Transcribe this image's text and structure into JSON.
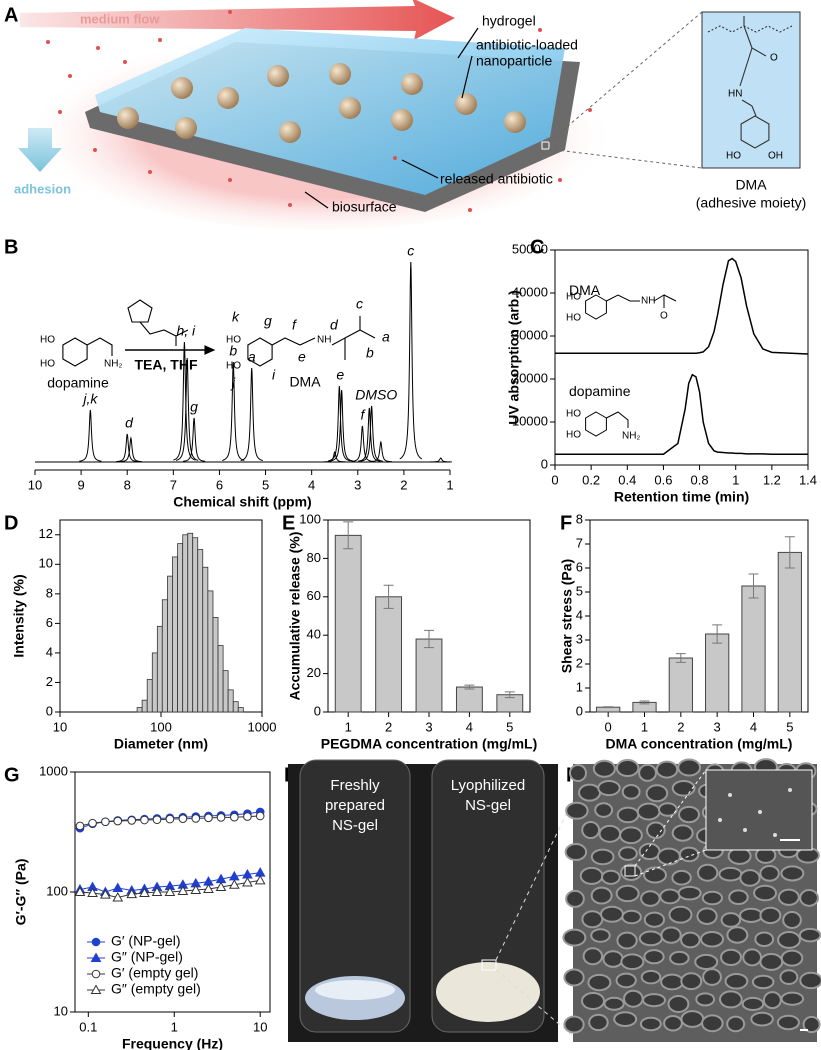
{
  "panel_labels": [
    "A",
    "B",
    "C",
    "D",
    "E",
    "F",
    "G",
    "H",
    "I"
  ],
  "schematic": {
    "flow_label": "medium flow",
    "hydrogel": "hydrogel",
    "nanoparticle": [
      "antibiotic-loaded",
      "nanoparticle"
    ],
    "adhesion": "adhesion",
    "released": "released antibiotic",
    "biosurface": "biosurface",
    "moiety_atoms": [
      "O",
      "HN",
      "HO",
      "OH"
    ],
    "moiety_name": "DMA",
    "moiety_note": "(adhesive moiety)"
  },
  "synthesis": {
    "reactant": "dopamine",
    "reactant_atoms": [
      "HO",
      "HO",
      "NH₂"
    ],
    "conditions": "TEA, THF",
    "product": "DMA",
    "product_atoms": [
      "HO",
      "HO",
      "NH"
    ],
    "site_labels": [
      "k",
      "g",
      "f",
      "d",
      "c",
      "a",
      "b",
      "e",
      "j",
      "i"
    ]
  },
  "chart_data": [
    {
      "type": "spectrum",
      "xlabel": "Chemical shift (ppm)",
      "xlim": [
        10,
        1
      ],
      "xticks": [
        10,
        9,
        8,
        7,
        6,
        5,
        4,
        3,
        2,
        1
      ],
      "x": [
        8.8,
        8.0,
        7.92,
        6.76,
        6.7,
        6.55,
        5.7,
        5.3,
        3.5,
        3.4,
        3.35,
        2.9,
        2.75,
        2.7,
        2.5,
        1.85,
        1.2
      ],
      "values": [
        26,
        14,
        12,
        60,
        52,
        22,
        50,
        47,
        5,
        38,
        36,
        18,
        27,
        28,
        10,
        100,
        2
      ],
      "annotations": [
        {
          "text": "j,k",
          "x": 8.8
        },
        {
          "text": "d",
          "x": 7.96
        },
        {
          "text": "h, i",
          "x": 6.73
        },
        {
          "text": "g",
          "x": 6.55
        },
        {
          "text": "b",
          "x": 5.7
        },
        {
          "text": "a",
          "x": 5.3
        },
        {
          "text": "e",
          "x": 3.38
        },
        {
          "text": "f",
          "x": 2.9
        },
        {
          "text": "DMSO",
          "x": 2.6
        },
        {
          "text": "c",
          "x": 1.85
        }
      ]
    },
    {
      "type": "line",
      "xlabel": "Retention time (min)",
      "ylabel": "UV absorption (arb.)",
      "xlim": [
        0,
        1.4
      ],
      "xticks": [
        0,
        0.2,
        0.4,
        0.6,
        0.8,
        1,
        1.2,
        1.4
      ],
      "ylim": [
        0,
        50000
      ],
      "yticks": [
        0,
        10000,
        20000,
        30000,
        40000,
        50000
      ],
      "x": [
        0,
        0.6,
        0.68,
        0.72,
        0.74,
        0.76,
        0.78,
        0.8,
        0.82,
        0.85,
        0.88,
        0.9,
        0.93,
        0.96,
        0.98,
        1.0,
        1.03,
        1.06,
        1.1,
        1.15,
        1.2,
        1.4
      ],
      "series": [
        {
          "name": "DMA",
          "color": "#000000",
          "values": [
            26000,
            26000,
            26000,
            26000,
            26000,
            26000,
            26000,
            26100,
            26300,
            27500,
            31000,
            35000,
            42000,
            47500,
            48000,
            47300,
            43500,
            37000,
            30500,
            27000,
            26200,
            25800
          ]
        },
        {
          "name": "dopamine",
          "color": "#000000",
          "values": [
            2500,
            2500,
            5000,
            13000,
            19000,
            21000,
            20500,
            17000,
            10000,
            5000,
            3300,
            3000,
            2900,
            2800,
            2800,
            2700,
            2700,
            2600,
            2600,
            2600,
            2500,
            2500
          ]
        }
      ],
      "structure_atoms": [
        [
          "HO",
          "HO",
          "NH",
          "O"
        ],
        [
          "HO",
          "HO",
          "NH₂"
        ]
      ]
    },
    {
      "type": "histogram",
      "xlabel": "Diameter (nm)",
      "ylabel": "Intensity (%)",
      "xlog": true,
      "xlim": [
        10,
        1000
      ],
      "xticks": [
        10,
        100,
        1000
      ],
      "ylim": [
        0,
        13
      ],
      "yticks": [
        0,
        2,
        4,
        6,
        8,
        10,
        12
      ],
      "color": "#c8c8c8",
      "bins": [
        58,
        65,
        73,
        82,
        92,
        103,
        116,
        130,
        146,
        164,
        184,
        206,
        231,
        259,
        291,
        327,
        367,
        412,
        462,
        519,
        582,
        653
      ],
      "counts": [
        0.3,
        0.8,
        2.2,
        4,
        5.8,
        7.6,
        9.2,
        10.5,
        11.4,
        12,
        12.1,
        11.8,
        11,
        9.8,
        8.2,
        6.4,
        4.5,
        2.8,
        1.5,
        0.7,
        0.3
      ]
    },
    {
      "type": "bar",
      "xlabel": "PEGDMA concentration (mg/mL)",
      "ylabel": "Accumulative release (%)",
      "categories": [
        "1",
        "2",
        "3",
        "4",
        "5"
      ],
      "values": [
        92,
        60,
        38,
        13,
        9
      ],
      "errors": [
        7,
        6,
        4.5,
        1,
        1.5
      ],
      "color": "#c8c8c8",
      "ylim": [
        0,
        100
      ],
      "yticks": [
        0,
        20,
        40,
        60,
        80,
        100
      ]
    },
    {
      "type": "bar",
      "xlabel": "DMA concentration (mg/mL)",
      "ylabel": "Shear stress (Pa)",
      "categories": [
        "0",
        "1",
        "2",
        "3",
        "4",
        "5"
      ],
      "values": [
        0.2,
        0.4,
        2.25,
        3.25,
        5.25,
        6.65
      ],
      "errors": [
        0.02,
        0.06,
        0.18,
        0.38,
        0.5,
        0.65
      ],
      "color": "#c8c8c8",
      "ylim": [
        0,
        8
      ],
      "yticks": [
        0,
        1,
        2,
        3,
        4,
        5,
        6,
        7,
        8
      ]
    },
    {
      "type": "line",
      "xlabel": "Frequency (Hz)",
      "ylabel": "G′-G″ (Pa)",
      "xlog": true,
      "ylog": true,
      "xlim": [
        0.07,
        13
      ],
      "xticks": [
        0.1,
        1,
        10
      ],
      "ylim": [
        10,
        1000
      ],
      "yticks": [
        10,
        100,
        1000
      ],
      "legend": "lower left",
      "x": [
        0.08,
        0.112,
        0.158,
        0.22,
        0.32,
        0.45,
        0.63,
        0.89,
        1.26,
        1.78,
        2.5,
        3.5,
        5,
        7.1,
        10
      ],
      "series": [
        {
          "name": "G′ (NP-gel)",
          "color": "#1f3fd0",
          "marker": "circle",
          "filled": true,
          "values": [
            340,
            370,
            385,
            395,
            400,
            405,
            410,
            415,
            420,
            425,
            430,
            435,
            440,
            450,
            465
          ]
        },
        {
          "name": "G″ (NP-gel)",
          "color": "#1f3fd0",
          "marker": "triangle",
          "filled": true,
          "values": [
            105,
            110,
            100,
            108,
            103,
            106,
            110,
            112,
            115,
            118,
            122,
            128,
            135,
            140,
            145
          ]
        },
        {
          "name": "G′ (empty gel)",
          "color": "#333333",
          "marker": "circle",
          "filled": false,
          "values": [
            355,
            375,
            385,
            390,
            395,
            398,
            400,
            405,
            408,
            410,
            415,
            418,
            420,
            425,
            430
          ]
        },
        {
          "name": "G″ (empty gel)",
          "color": "#333333",
          "marker": "triangle",
          "filled": false,
          "values": [
            100,
            98,
            95,
            90,
            96,
            98,
            100,
            100,
            102,
            104,
            106,
            110,
            115,
            120,
            125
          ]
        }
      ]
    }
  ],
  "photo": {
    "left": [
      "Freshly",
      "prepared",
      "NS-gel"
    ],
    "right": [
      "Lyophilized",
      "NS-gel"
    ]
  }
}
